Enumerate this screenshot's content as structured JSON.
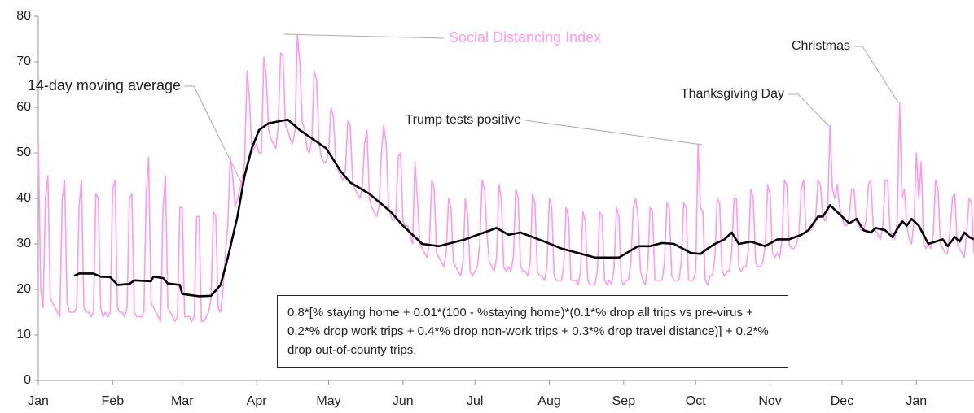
{
  "chart_data": {
    "type": "line",
    "xlim": [
      0,
      390
    ],
    "ylim": [
      0,
      80
    ],
    "yticks": [
      0,
      10,
      20,
      30,
      40,
      50,
      60,
      70,
      80
    ],
    "xticks": [
      {
        "value": 0,
        "label": "Jan"
      },
      {
        "value": 31,
        "label": "Feb"
      },
      {
        "value": 60,
        "label": "Mar"
      },
      {
        "value": 91,
        "label": "Apr"
      },
      {
        "value": 121,
        "label": "May"
      },
      {
        "value": 152,
        "label": "Jun"
      },
      {
        "value": 182,
        "label": "Jul"
      },
      {
        "value": 213,
        "label": "Aug"
      },
      {
        "value": 244,
        "label": "Sep"
      },
      {
        "value": 274,
        "label": "Oct"
      },
      {
        "value": 305,
        "label": "Nov"
      },
      {
        "value": 335,
        "label": "Dec"
      },
      {
        "value": 366,
        "label": "Jan"
      }
    ],
    "series": [
      {
        "name": "Social Distancing Index",
        "color": "#ff99ee",
        "values": [
          53,
          20,
          16,
          40,
          45,
          18,
          17,
          16,
          15,
          14,
          40,
          44,
          17,
          15,
          15,
          15,
          16,
          38,
          44,
          16,
          15,
          15,
          14,
          15,
          41,
          40,
          16,
          14,
          15,
          14,
          15,
          42,
          44,
          16,
          15,
          15,
          14,
          16,
          40,
          41,
          15,
          14,
          14,
          14,
          15,
          41,
          49,
          17,
          16,
          15,
          14,
          13,
          38,
          45,
          16,
          15,
          14,
          13,
          14,
          38,
          38,
          14,
          14,
          14,
          13,
          14,
          36,
          36,
          13,
          13,
          14,
          15,
          18,
          37,
          36,
          16,
          15,
          20,
          28,
          34,
          49,
          45,
          38,
          40,
          42,
          44,
          48,
          68,
          62,
          50,
          51,
          52,
          50,
          50,
          71,
          67,
          55,
          53,
          52,
          51,
          56,
          72,
          71,
          56,
          55,
          53,
          52,
          55,
          76,
          70,
          57,
          55,
          51,
          50,
          53,
          68,
          66,
          52,
          49,
          48,
          48,
          50,
          60,
          58,
          48,
          46,
          45,
          44,
          46,
          57,
          56,
          44,
          42,
          41,
          40,
          42,
          52,
          55,
          40,
          38,
          37,
          36,
          38,
          50,
          56,
          52,
          38,
          36,
          35,
          36,
          49,
          50,
          35,
          34,
          34,
          32,
          30,
          48,
          40,
          30,
          29,
          28,
          27,
          30,
          44,
          42,
          28,
          27,
          26,
          25,
          28,
          40,
          38,
          26,
          25,
          24,
          23,
          26,
          40,
          36,
          24,
          23,
          24,
          25,
          30,
          44,
          42,
          32,
          26,
          25,
          24,
          27,
          43,
          40,
          25,
          24,
          25,
          24,
          27,
          42,
          40,
          25,
          24,
          24,
          23,
          26,
          41,
          39,
          24,
          23,
          23,
          22,
          25,
          40,
          38,
          23,
          22,
          22,
          22,
          25,
          38,
          36,
          22,
          22,
          22,
          21,
          24,
          37,
          35,
          22,
          21,
          21,
          21,
          24,
          37,
          36,
          22,
          21,
          22,
          21,
          25,
          38,
          36,
          22,
          21,
          22,
          22,
          26,
          38,
          40,
          36,
          24,
          22,
          21,
          25,
          38,
          37,
          22,
          22,
          22,
          22,
          26,
          39,
          38,
          23,
          22,
          22,
          22,
          26,
          39,
          38,
          22,
          22,
          22,
          24,
          52,
          38,
          37,
          22,
          21,
          23,
          23,
          27,
          40,
          39,
          24,
          23,
          24,
          24,
          28,
          40,
          40,
          25,
          24,
          25,
          25,
          29,
          42,
          40,
          26,
          25,
          25,
          26,
          30,
          43,
          41,
          28,
          27,
          28,
          27,
          31,
          44,
          43,
          30,
          29,
          29,
          30,
          32,
          42,
          44,
          33,
          33,
          33,
          34,
          36,
          44,
          43,
          36,
          35,
          37,
          56,
          42,
          40,
          43,
          38,
          36,
          34,
          34,
          36,
          42,
          42,
          35,
          34,
          33,
          33,
          35,
          43,
          44,
          34,
          33,
          32,
          31,
          34,
          44,
          44,
          33,
          32,
          31,
          35,
          61,
          40,
          42,
          34,
          31,
          30,
          35,
          50,
          40,
          48,
          30,
          29,
          30,
          29,
          32,
          44,
          42,
          30,
          29,
          28,
          28,
          33,
          40,
          41,
          30,
          29,
          28,
          27,
          33,
          40,
          39,
          28
        ]
      },
      {
        "name": "14-day moving average",
        "color": "#000000",
        "x": [
          15,
          17,
          23,
          26,
          30,
          33,
          38,
          40,
          47,
          48,
          52,
          54,
          59,
          60,
          67,
          72,
          76,
          79,
          83,
          86,
          89,
          92,
          96,
          104,
          109,
          120,
          126,
          130,
          138,
          147,
          152,
          160,
          167,
          178,
          191,
          196,
          201,
          211,
          218,
          232,
          242,
          250,
          255,
          260,
          265,
          272,
          276,
          279,
          282,
          286,
          289,
          292,
          297,
          303,
          308,
          313,
          318,
          321,
          325,
          327,
          330,
          334,
          338,
          341,
          344,
          347,
          349,
          353,
          356,
          360,
          362,
          364,
          367,
          371,
          374,
          377,
          379,
          382,
          384,
          386,
          388,
          390
        ],
        "values": [
          23,
          23.5,
          23.5,
          22.8,
          22.7,
          21,
          21.2,
          22,
          21.8,
          22.8,
          22.5,
          21.3,
          21,
          19,
          18.5,
          18.6,
          21,
          27,
          36,
          45,
          51,
          55,
          56.5,
          57.3,
          55,
          51,
          46,
          43.5,
          41,
          37,
          34,
          30,
          29.5,
          31,
          33.5,
          32,
          32.5,
          30.5,
          29,
          27,
          27,
          29.5,
          29.5,
          30.2,
          30,
          28,
          27.8,
          29,
          30,
          31,
          32.5,
          30,
          30.5,
          29.5,
          31,
          31,
          32,
          33,
          36,
          36,
          38.5,
          36.5,
          34.5,
          35.5,
          33,
          32.5,
          33.5,
          33,
          31.5,
          35,
          34,
          35.5,
          34,
          30,
          30.5,
          31,
          29.5,
          31.5,
          30.5,
          32.5,
          31.5,
          31
        ]
      }
    ],
    "annotations": [
      "Social Distancing Index",
      "14-day moving average",
      "Trump tests positive",
      "Thanksgiving Day",
      "Christmas"
    ],
    "note": "0.8*[% staying home + 0.01*(100 - %staying home)*(0.1*% drop all trips vs pre-virus + 0.2*% drop work trips + 0.4*% drop non-work trips + 0.3*% drop travel distance)] + 0.2*% drop out-of-county trips."
  }
}
